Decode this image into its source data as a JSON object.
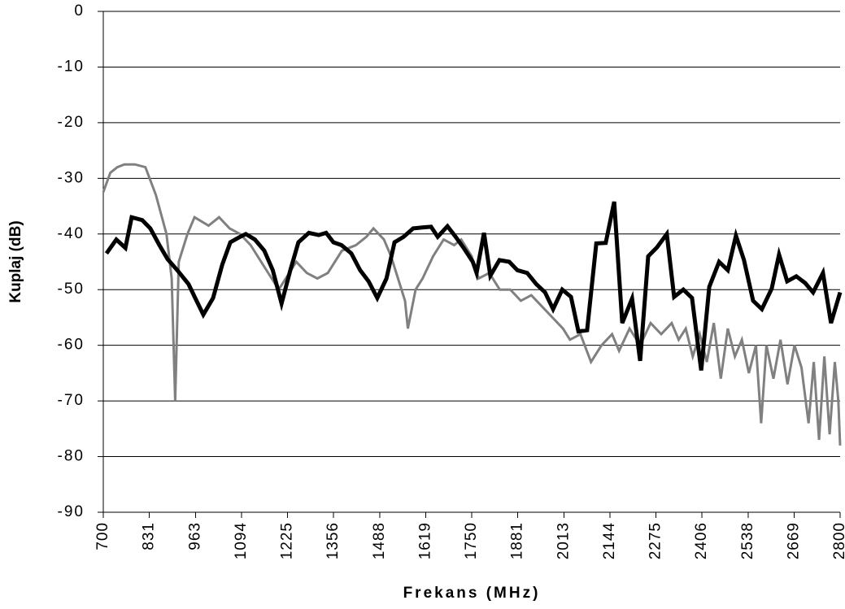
{
  "chart_data": {
    "type": "line",
    "x_label": "Frekans (MHz)",
    "y_label": "Kuplaj (dB)",
    "xlim": [
      700,
      2800
    ],
    "ylim": [
      -90,
      0
    ],
    "xticks": [
      700,
      831,
      963,
      1094,
      1225,
      1356,
      1488,
      1619,
      1750,
      1881,
      2013,
      2144,
      2275,
      2406,
      2538,
      2669,
      2800
    ],
    "yticks": [
      0,
      -10,
      -20,
      -30,
      -40,
      -50,
      -60,
      -70,
      -80,
      -90
    ],
    "grid": true,
    "series": [
      {
        "color": "#808080",
        "width": 3,
        "x": [
          700,
          720,
          740,
          760,
          790,
          820,
          850,
          880,
          895,
          905,
          915,
          940,
          960,
          1000,
          1030,
          1060,
          1090,
          1120,
          1150,
          1180,
          1200,
          1230,
          1250,
          1280,
          1310,
          1340,
          1380,
          1420,
          1450,
          1470,
          1500,
          1520,
          1540,
          1560,
          1568,
          1590,
          1610,
          1640,
          1670,
          1700,
          1720,
          1750,
          1770,
          1800,
          1830,
          1860,
          1890,
          1920,
          1950,
          1980,
          2010,
          2030,
          2060,
          2090,
          2120,
          2150,
          2170,
          2200,
          2230,
          2260,
          2290,
          2320,
          2340,
          2360,
          2380,
          2400,
          2420,
          2440,
          2460,
          2480,
          2500,
          2520,
          2540,
          2560,
          2575,
          2590,
          2610,
          2630,
          2650,
          2670,
          2690,
          2710,
          2725,
          2740,
          2755,
          2770,
          2785,
          2795,
          2800
        ],
        "values": [
          -32.5,
          -29,
          -28,
          -27.5,
          -27.5,
          -28,
          -33,
          -40,
          -48,
          -70,
          -45,
          -40,
          -37,
          -38.5,
          -37,
          -39,
          -40,
          -42,
          -45,
          -48,
          -50,
          -47,
          -45,
          -47,
          -48,
          -47,
          -43,
          -42,
          -40.5,
          -39,
          -41,
          -44,
          -48,
          -52,
          -57,
          -50,
          -48,
          -44,
          -41,
          -42,
          -41,
          -44,
          -48,
          -47,
          -50,
          -50,
          -52,
          -51,
          -53,
          -55,
          -57,
          -59,
          -58,
          -63,
          -60,
          -58,
          -61,
          -57,
          -60,
          -56,
          -58,
          -56,
          -59,
          -57,
          -62,
          -58,
          -63,
          -56,
          -66,
          -57,
          -62,
          -59,
          -65,
          -60,
          -74,
          -60,
          -66,
          -59,
          -67,
          -60,
          -64,
          -74,
          -63,
          -77,
          -62,
          -76,
          -63,
          -70,
          -78
        ]
      },
      {
        "color": "#000000",
        "width": 5,
        "x": [
          709,
          737,
          763,
          781,
          811,
          834,
          860,
          883,
          911,
          943,
          962,
          985,
          1013,
          1039,
          1062,
          1090,
          1106,
          1132,
          1159,
          1183,
          1208,
          1233,
          1256,
          1286,
          1314,
          1335,
          1356,
          1379,
          1407,
          1432,
          1456,
          1481,
          1507,
          1530,
          1556,
          1583,
          1613,
          1634,
          1653,
          1681,
          1704,
          1727,
          1753,
          1764,
          1785,
          1803,
          1829,
          1857,
          1880,
          1908,
          1934,
          1959,
          1982,
          2008,
          2033,
          2054,
          2079,
          2105,
          2132,
          2156,
          2179,
          2207,
          2230,
          2253,
          2278,
          2306,
          2327,
          2353,
          2378,
          2404,
          2427,
          2455,
          2480,
          2503,
          2526,
          2552,
          2577,
          2605,
          2626,
          2649,
          2675,
          2700,
          2723,
          2751,
          2774,
          2800
        ],
        "values": [
          -43.5,
          -41,
          -42.5,
          -37,
          -37.5,
          -39,
          -42,
          -44.5,
          -46.5,
          -49,
          -51.5,
          -54.5,
          -51.5,
          -45.5,
          -41.5,
          -40.5,
          -40,
          -41,
          -43,
          -46.5,
          -52.5,
          -46.5,
          -41.5,
          -39.8,
          -40.2,
          -39.8,
          -41.5,
          -42,
          -43.5,
          -46.5,
          -48.5,
          -51.5,
          -48,
          -41.5,
          -40.5,
          -39,
          -38.8,
          -38.7,
          -40.5,
          -38.6,
          -40.5,
          -42.5,
          -45,
          -47,
          -39.8,
          -47.5,
          -44.7,
          -45,
          -46.5,
          -47,
          -49,
          -50.5,
          -53.5,
          -50,
          -51.3,
          -57.5,
          -57.3,
          -41.7,
          -41.6,
          -34.2,
          -56,
          -51.6,
          -62.8,
          -44,
          -42.4,
          -40,
          -51.3,
          -50,
          -51.5,
          -64.5,
          -49.5,
          -45,
          -46.5,
          -40.3,
          -44.7,
          -52,
          -53.5,
          -49.8,
          -43.7,
          -48.5,
          -47.6,
          -48.8,
          -50.5,
          -47,
          -56,
          -50.5
        ]
      }
    ]
  }
}
